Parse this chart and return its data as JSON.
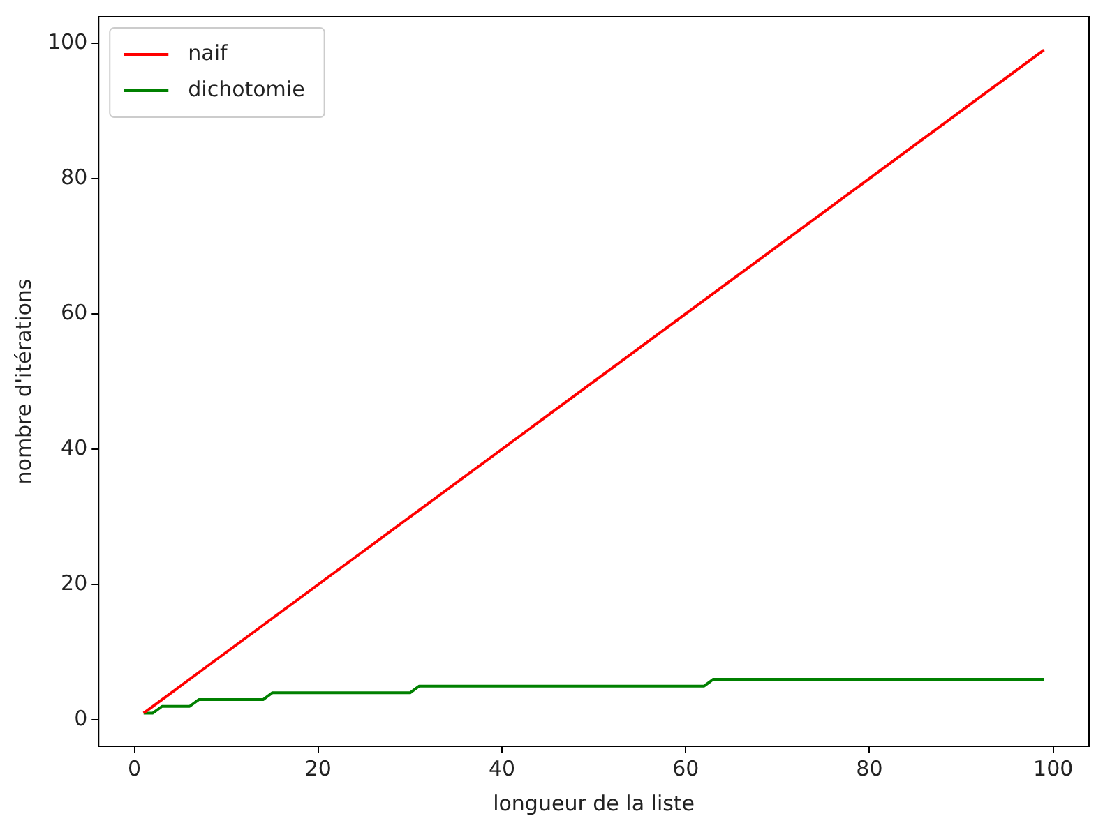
{
  "chart_data": {
    "type": "line",
    "xlabel": "longueur de la liste",
    "ylabel": "nombre d'itérations",
    "xlim": [
      -3.9,
      103.9
    ],
    "ylim": [
      -3.9,
      103.9
    ],
    "xticks": [
      0,
      20,
      40,
      60,
      80,
      100
    ],
    "yticks": [
      0,
      20,
      40,
      60,
      80,
      100
    ],
    "grid": false,
    "legend": "top left",
    "marker": "none",
    "line_style": "solid",
    "series": [
      {
        "name": "naif",
        "color": "#ff0000",
        "x": [
          1,
          99
        ],
        "values": [
          1,
          99
        ]
      },
      {
        "name": "dichotomie",
        "color": "#008000",
        "x": [
          1,
          2,
          3,
          6,
          7,
          14,
          15,
          30,
          31,
          62,
          63,
          99
        ],
        "values": [
          1,
          1,
          2,
          2,
          3,
          3,
          4,
          4,
          5,
          5,
          6,
          6
        ]
      }
    ]
  }
}
